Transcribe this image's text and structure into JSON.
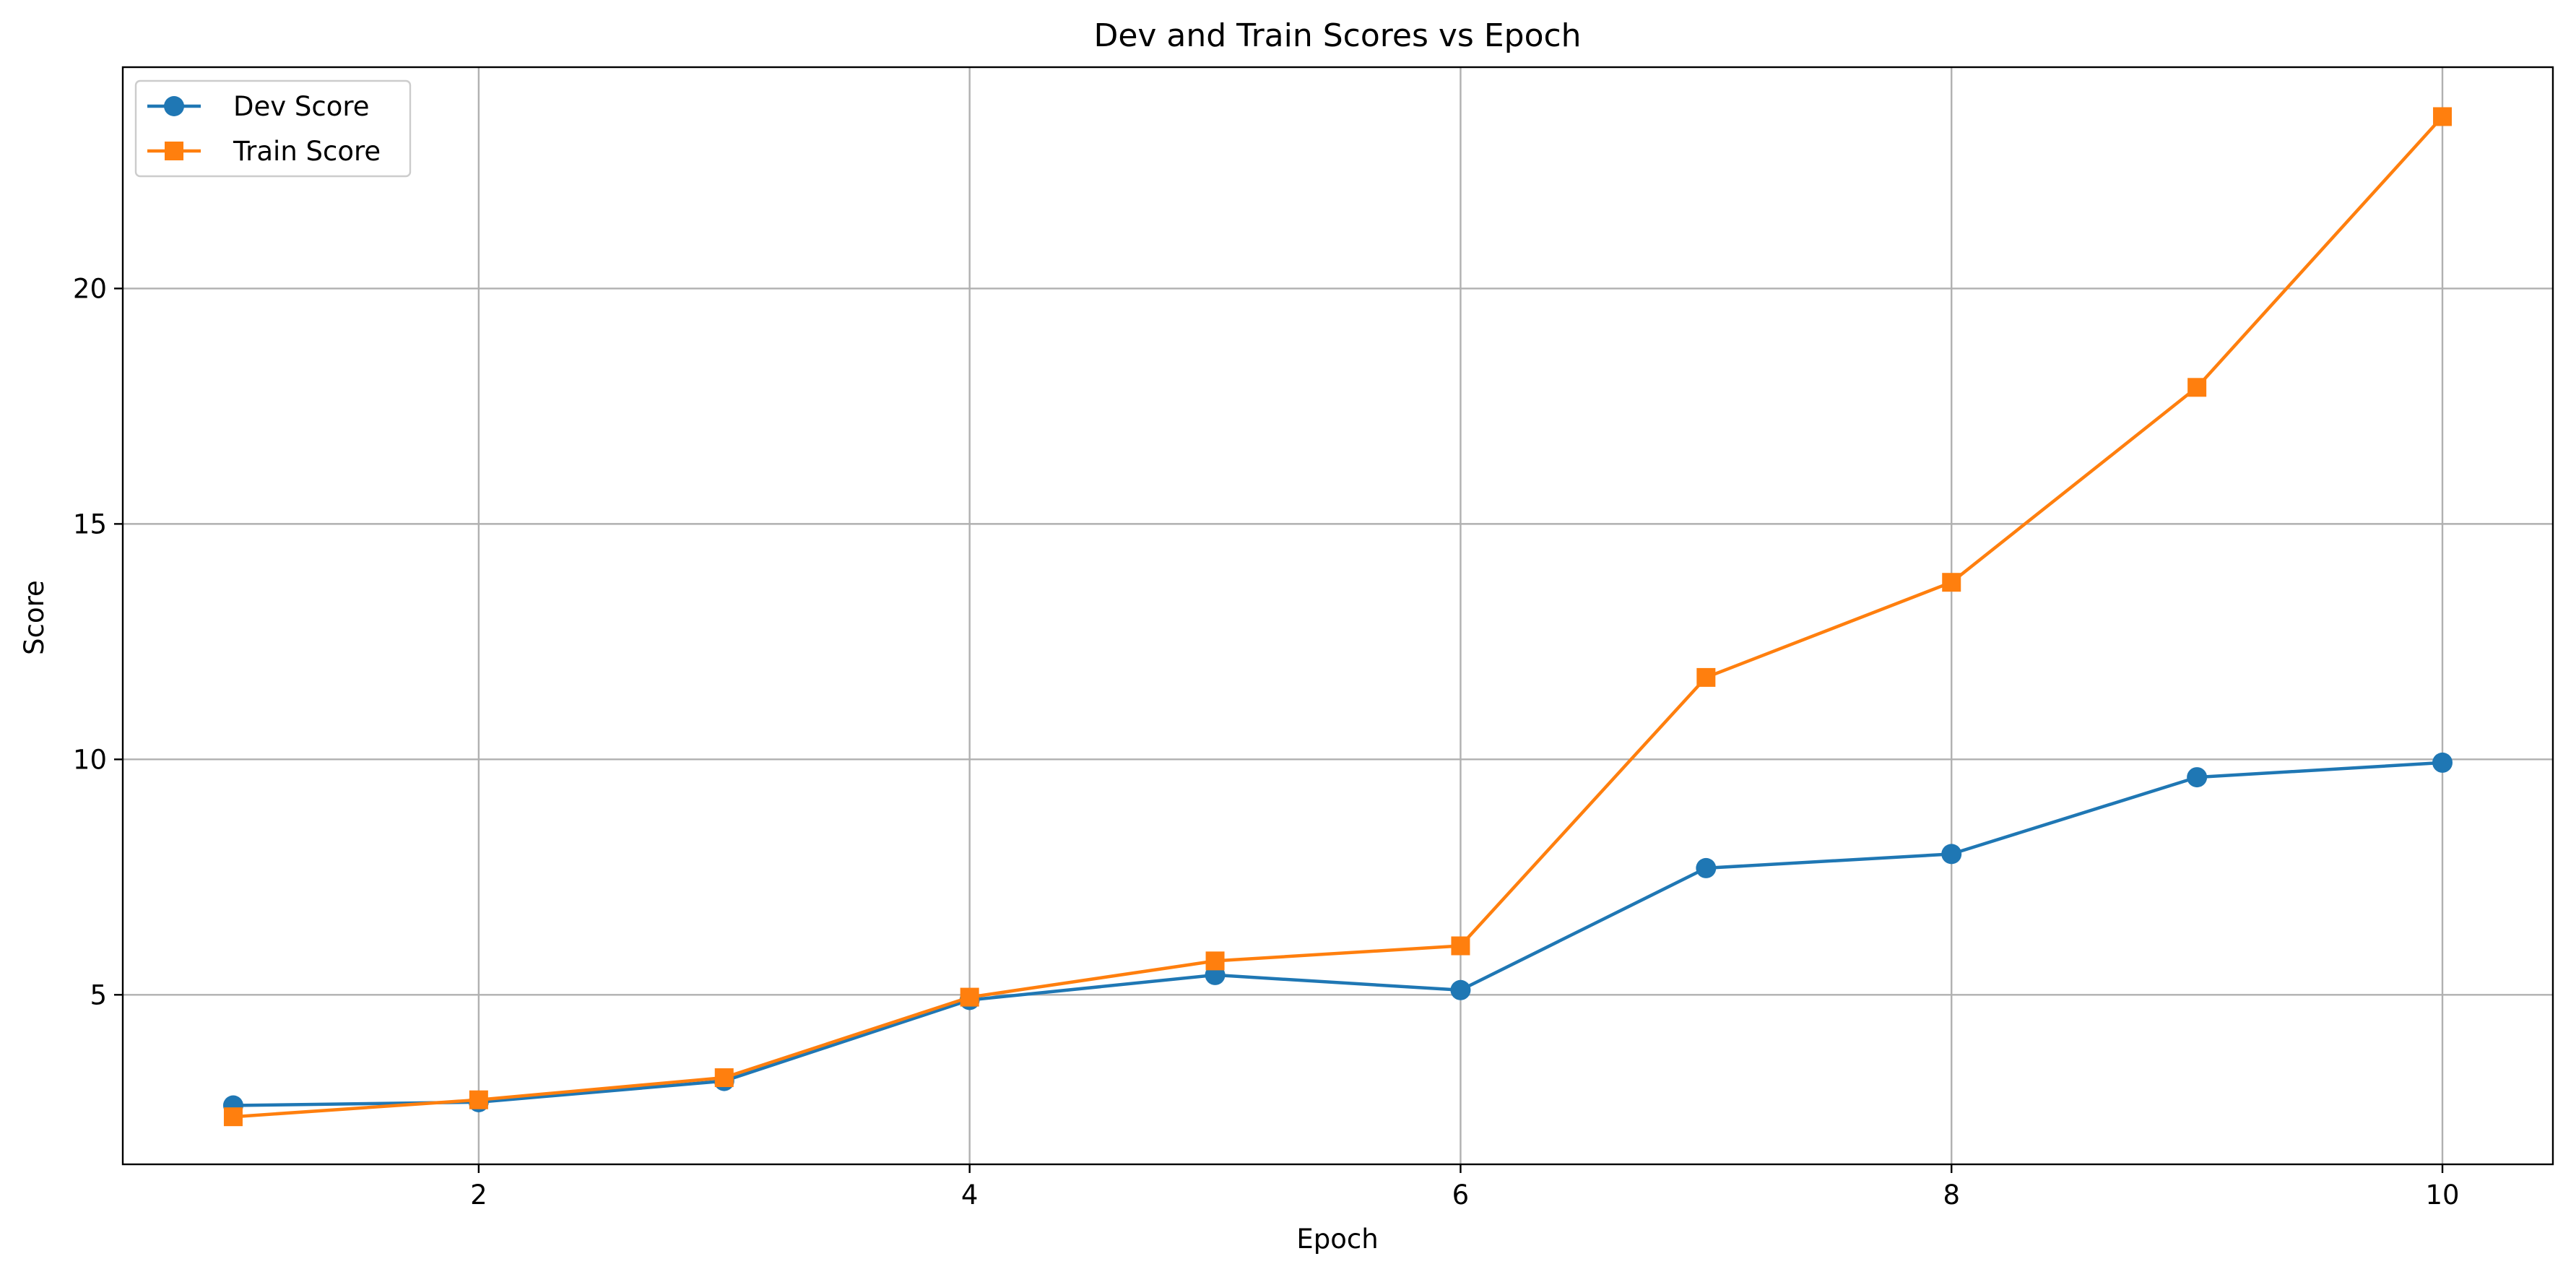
{
  "chart_data": {
    "type": "line",
    "title": "Dev and Train Scores vs Epoch",
    "xlabel": "Epoch",
    "ylabel": "Score",
    "x": [
      1,
      2,
      3,
      4,
      5,
      6,
      7,
      8,
      9,
      10
    ],
    "xlim": [
      0.55,
      10.45
    ],
    "ylim": [
      1.4,
      24.7
    ],
    "xticks": [
      2,
      4,
      6,
      8,
      10
    ],
    "yticks": [
      5,
      10,
      15,
      20
    ],
    "grid": true,
    "legend_position": "top-left",
    "series": [
      {
        "name": "Dev Score",
        "color": "#1f77b4",
        "marker": "circle",
        "values": [
          2.65,
          2.72,
          3.17,
          4.89,
          5.42,
          5.1,
          7.69,
          7.99,
          9.62,
          9.93
        ]
      },
      {
        "name": "Train Score",
        "color": "#ff7f0e",
        "marker": "square",
        "values": [
          2.41,
          2.77,
          3.24,
          4.95,
          5.72,
          6.04,
          11.74,
          13.76,
          17.9,
          23.65
        ]
      }
    ]
  }
}
